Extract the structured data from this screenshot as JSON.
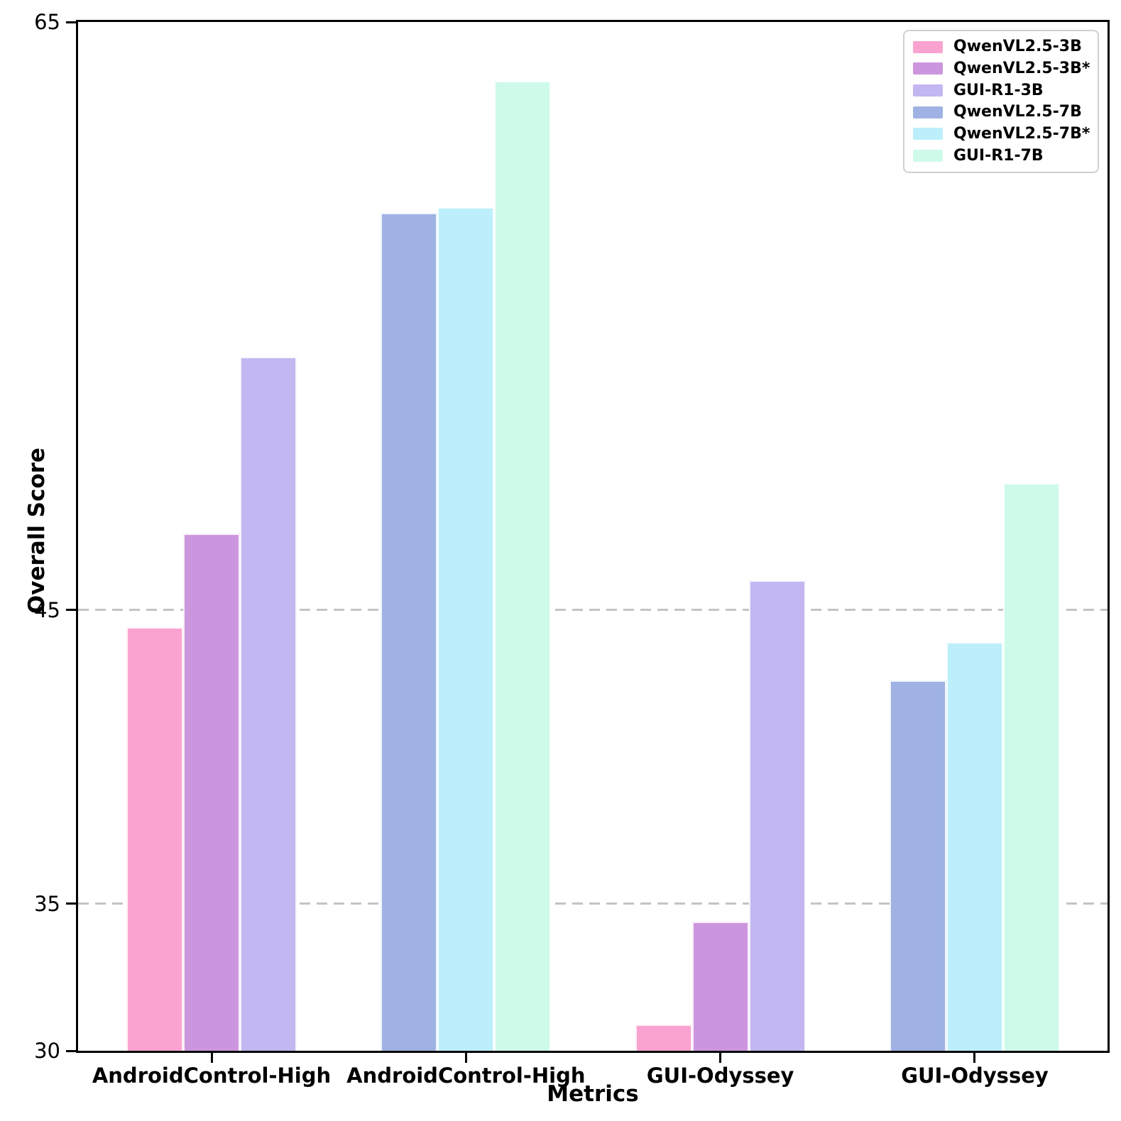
{
  "chart_data": {
    "type": "bar",
    "title": "",
    "xlabel": "Metrics",
    "ylabel": "Overall Score",
    "ylim": [
      30,
      65
    ],
    "yticks": [
      30,
      35,
      45,
      65
    ],
    "gridlines": {
      "values": [
        35,
        45
      ],
      "style": "dashed",
      "color": "#c4c4c4"
    },
    "grid_on": true,
    "legend_position": "upper right",
    "background": "#ffffff",
    "categories": [
      "AndroidControl-High",
      "AndroidControl-High",
      "GUI-Odyssey",
      "GUI-Odyssey"
    ],
    "series": [
      {
        "name": "QwenVL2.5-3B",
        "color": "#FAA3D0",
        "values": [
          44.4,
          null,
          30.9,
          null
        ]
      },
      {
        "name": "QwenVL2.5-3B*",
        "color": "#CC96DE",
        "values": [
          47.6,
          null,
          34.4,
          null
        ]
      },
      {
        "name": "GUI-R1-3B",
        "color": "#C3B6F1",
        "values": [
          53.6,
          null,
          46.0,
          null
        ]
      },
      {
        "name": "QwenVL2.5-7B",
        "color": "#9FB2E3",
        "values": [
          null,
          58.5,
          null,
          42.6
        ]
      },
      {
        "name": "QwenVL2.5-7B*",
        "color": "#BCEFFB",
        "values": [
          null,
          58.7,
          null,
          43.9
        ]
      },
      {
        "name": "GUI-R1-7B",
        "color": "#CEFAE9",
        "values": [
          null,
          63.0,
          null,
          49.3
        ]
      }
    ]
  }
}
